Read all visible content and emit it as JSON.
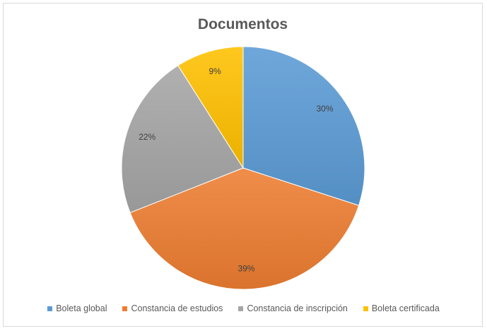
{
  "chart_data": {
    "type": "pie",
    "title": "Documentos",
    "categories": [
      "Boleta global",
      "Constancia de estudios",
      "Constancia de inscripción",
      "Boleta certificada"
    ],
    "values": [
      30,
      39,
      22,
      9
    ],
    "labels": [
      "30%",
      "39%",
      "22%",
      "9%"
    ],
    "colors": [
      "#5b9bd5",
      "#ed7d31",
      "#a5a5a5",
      "#ffc000"
    ],
    "legend": "bottom"
  }
}
